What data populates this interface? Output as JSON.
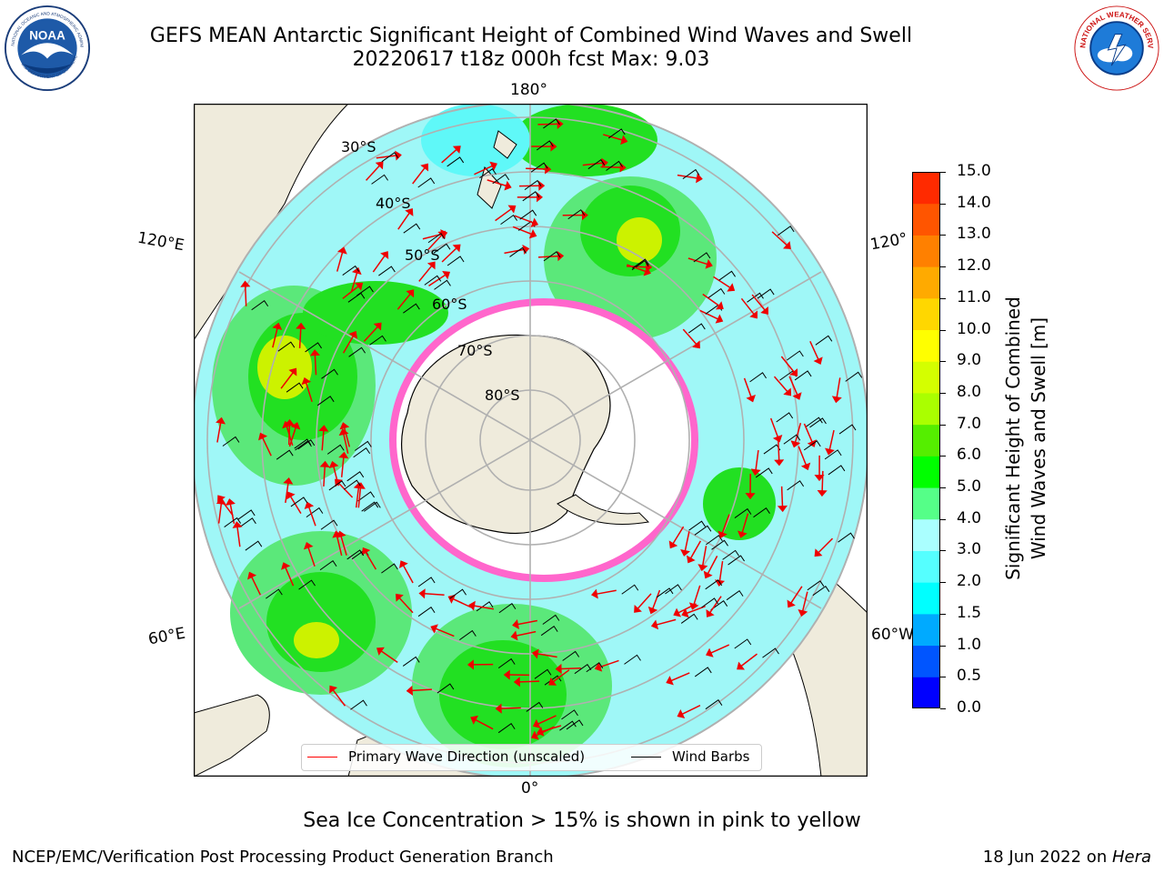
{
  "header": {
    "title_line1": "GEFS MEAN Antarctic Significant Height of Combined Wind Waves and Swell",
    "title_line2": "20220617 t18z 000h fcst   Max: 9.03"
  },
  "logos": {
    "noaa_text": "NOAA",
    "noaa_ring_text": "NATIONAL OCEANIC AND ATMOSPHERIC ADMINISTRATION",
    "noaa_bottom_text": "U.S. DEPARTMENT OF COMMERCE",
    "nws_ring_text": "NATIONAL WEATHER SERVICE"
  },
  "map": {
    "longitude_labels": {
      "top": "180°",
      "bottom": "0°",
      "left_upper": "120°E",
      "left_lower": "60°E",
      "right_upper": "120°",
      "right_lower": "60°W"
    },
    "latitude_labels": [
      "30°S",
      "40°S",
      "50°S",
      "60°S",
      "70°S",
      "80°S"
    ]
  },
  "colorbar": {
    "label_line1": "Significant Height of Combined",
    "label_line2": "Wind Waves and Swell [m]",
    "ticks": [
      "0.0",
      "0.5",
      "1.0",
      "1.5",
      "2.0",
      "3.0",
      "4.0",
      "5.0",
      "6.0",
      "7.0",
      "8.0",
      "9.0",
      "10.0",
      "11.0",
      "12.0",
      "13.0",
      "14.0",
      "15.0"
    ],
    "colors": [
      "#0000ff",
      "#0055ff",
      "#00aaff",
      "#00ffff",
      "#55ffff",
      "#aaffff",
      "#55ff88",
      "#00ff00",
      "#55ee00",
      "#aaff00",
      "#d4ff00",
      "#ffff00",
      "#ffd700",
      "#ffaa00",
      "#ff8000",
      "#ff5500",
      "#ff2a00",
      "#ff0000"
    ]
  },
  "legend": {
    "wave_direction_label": "Primary Wave Direction (unscaled)",
    "wave_direction_color": "#ff0000",
    "wind_barbs_label": "Wind Barbs",
    "wind_barbs_color": "#000000"
  },
  "caption": "Sea Ice Concentration > 15% is shown in pink to yellow",
  "footer": {
    "left": "NCEP/EMC/Verification Post Processing Product Generation Branch",
    "right_prefix": "18 Jun 2022 on ",
    "right_italic": "Hera"
  }
}
